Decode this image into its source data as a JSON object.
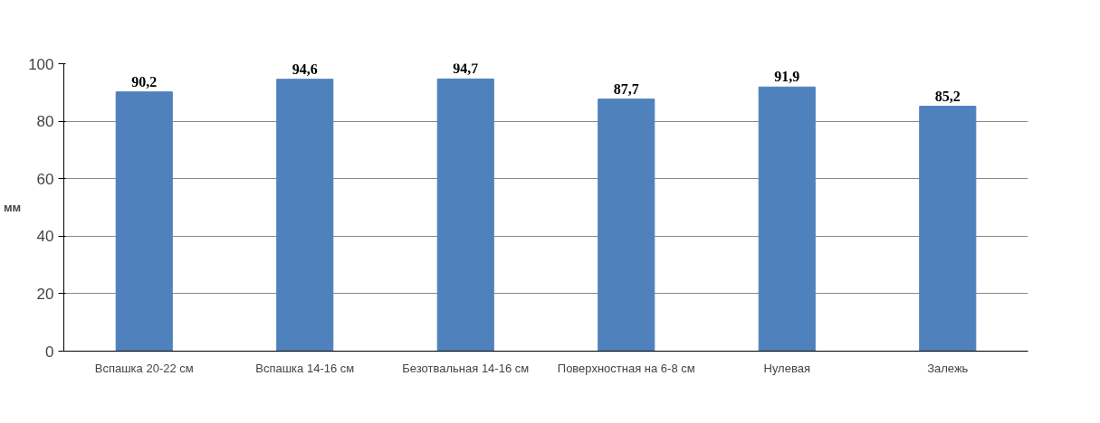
{
  "chart_data": {
    "type": "bar",
    "ylabel": "мм",
    "categories": [
      "Вспашка 20-22 см",
      "Вспашка 14-16 см",
      "Безотвальная 14-16 см",
      "Поверхностная на 6-8 см",
      "Нулевая",
      "Залежь"
    ],
    "values": [
      90.2,
      94.6,
      94.7,
      87.7,
      91.9,
      85.2
    ],
    "value_labels": [
      "90,2",
      "94,6",
      "94,7",
      "87,7",
      "91,9",
      "85,2"
    ],
    "color": "#4f81bd",
    "ylim": [
      0,
      100
    ],
    "yticks": [
      0,
      20,
      40,
      60,
      80,
      100
    ],
    "grid": "y"
  }
}
